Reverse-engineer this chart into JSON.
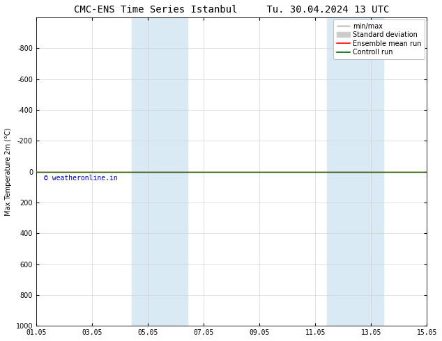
{
  "title": "CMC-ENS Time Series Istanbul     Tu. 30.04.2024 13 UTC",
  "ylabel": "Max Temperature 2m (°C)",
  "xlabel": "",
  "ylim_top": -1000,
  "ylim_bottom": 1000,
  "yticks": [
    -800,
    -600,
    -400,
    -200,
    0,
    200,
    400,
    600,
    800,
    1000
  ],
  "xlim_start": 0,
  "xlim_end": 14,
  "xtick_positions": [
    0,
    2,
    4,
    6,
    8,
    10,
    12,
    14
  ],
  "xtick_labels": [
    "01.05",
    "03.05",
    "05.05",
    "07.05",
    "09.05",
    "11.05",
    "13.05",
    "15.05"
  ],
  "shaded_bands": [
    {
      "x_start": 3.43,
      "x_end": 5.43
    },
    {
      "x_start": 10.43,
      "x_end": 12.43
    }
  ],
  "shade_color": "#daeaf5",
  "control_run_color": "#006600",
  "ensemble_mean_color": "#ff0000",
  "minmax_color": "#999999",
  "std_dev_color": "#cccccc",
  "copyright_text": "© weatheronline.in",
  "copyright_color": "#0000bb",
  "background_color": "#ffffff",
  "title_fontsize": 10,
  "legend_fontsize": 7,
  "tick_fontsize": 7,
  "ylabel_fontsize": 7
}
